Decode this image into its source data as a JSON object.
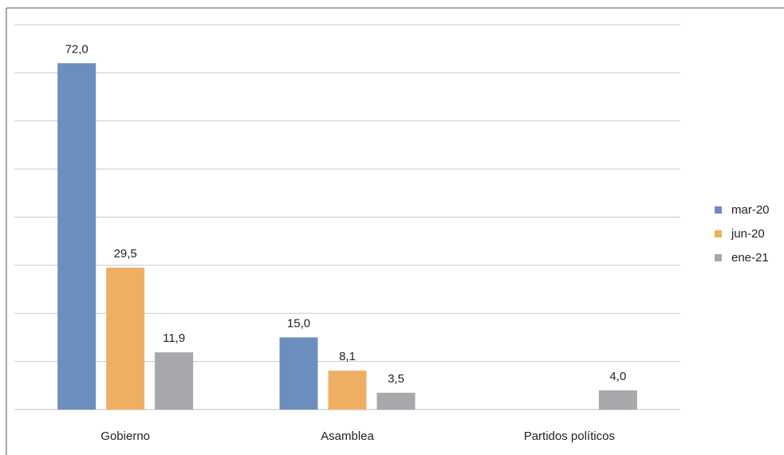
{
  "chart_data": {
    "type": "bar",
    "title": "",
    "xlabel": "",
    "ylabel": "",
    "categories": [
      "Gobierno",
      "Asamblea",
      "Partidos políticos"
    ],
    "series": [
      {
        "name": "mar-20",
        "color": "#6c8ebf",
        "values": [
          72.0,
          15.0,
          null
        ],
        "labels": [
          "72,0",
          "15,0",
          ""
        ]
      },
      {
        "name": "jun-20",
        "color": "#eeaf63",
        "values": [
          29.5,
          8.1,
          null
        ],
        "labels": [
          "29,5",
          "8,1",
          ""
        ]
      },
      {
        "name": "ene-21",
        "color": "#a7a8ab",
        "values": [
          11.9,
          3.5,
          4.0
        ],
        "labels": [
          "11,9",
          "3,5",
          "4,0"
        ]
      }
    ],
    "ylim": [
      0,
      80
    ],
    "grid": true,
    "legend_position": "right"
  }
}
